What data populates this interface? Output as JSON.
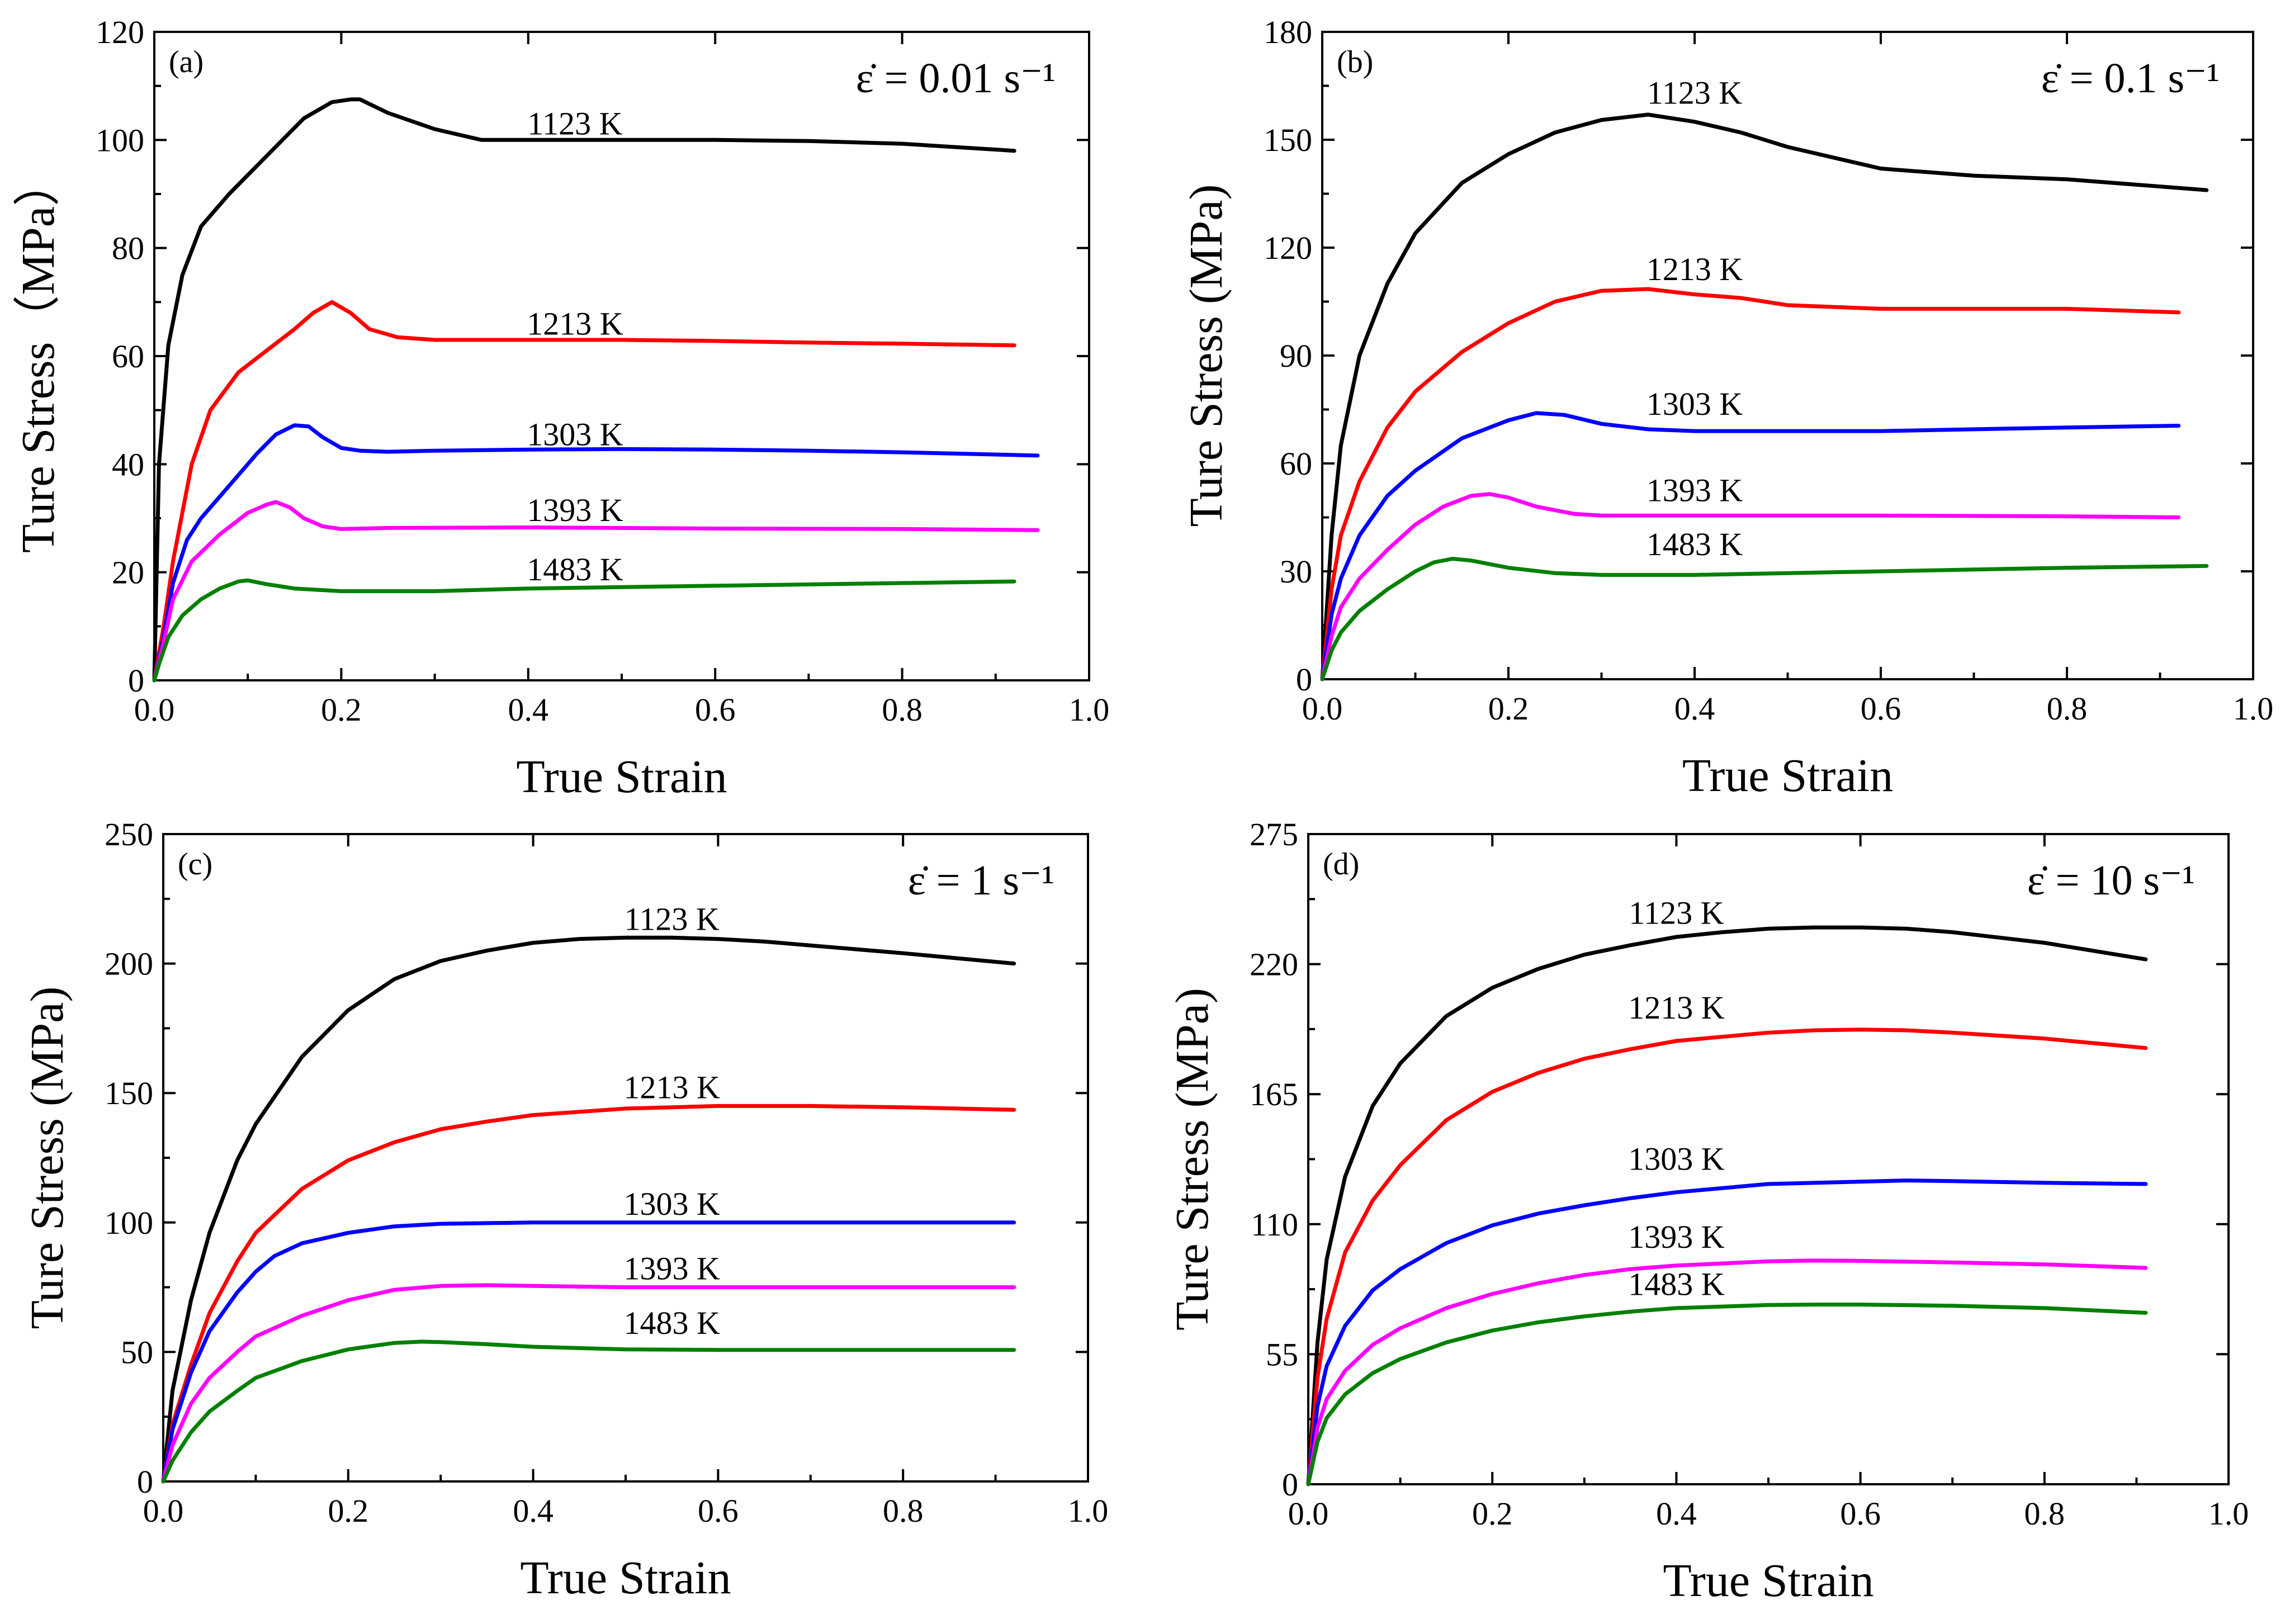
{
  "chart_data": [
    {
      "type": "line",
      "panel_label": "(a)",
      "rate_label": "ε̇ = 0.01 s⁻¹",
      "xlabel": "True Strain",
      "ylabel": "Ture Stress（MPa）",
      "xlim": [
        0,
        1.0
      ],
      "ylim": [
        0,
        120
      ],
      "xticks": [
        "0.0",
        "0.2",
        "0.4",
        "0.6",
        "0.8",
        "1.0"
      ],
      "yticks": [
        "0",
        "20",
        "40",
        "60",
        "80",
        "100",
        "120"
      ],
      "grid": false,
      "series": [
        {
          "name": "1123 K",
          "color": "#000000",
          "label_at": [
            0.45,
            101
          ],
          "x": [
            0,
            0.005,
            0.015,
            0.03,
            0.05,
            0.08,
            0.12,
            0.16,
            0.19,
            0.21,
            0.22,
            0.25,
            0.3,
            0.35,
            0.4,
            0.5,
            0.6,
            0.7,
            0.8,
            0.92
          ],
          "y": [
            0,
            40,
            62,
            75,
            84,
            90,
            97,
            104,
            107,
            107.5,
            107.5,
            105,
            102,
            100,
            100,
            100,
            100,
            99.8,
            99.3,
            98
          ]
        },
        {
          "name": "1213 K",
          "color": "#ff0000",
          "label_at": [
            0.45,
            64
          ],
          "x": [
            0,
            0.01,
            0.02,
            0.04,
            0.06,
            0.09,
            0.12,
            0.15,
            0.17,
            0.19,
            0.21,
            0.23,
            0.26,
            0.3,
            0.4,
            0.5,
            0.6,
            0.7,
            0.8,
            0.92
          ],
          "y": [
            0,
            10,
            22,
            40,
            50,
            57,
            61,
            65,
            68,
            70,
            68,
            65,
            63.5,
            63,
            63,
            63,
            62.8,
            62.5,
            62.3,
            62
          ]
        },
        {
          "name": "1303 K",
          "color": "#0000ff",
          "label_at": [
            0.45,
            43.5
          ],
          "x": [
            0,
            0.01,
            0.02,
            0.035,
            0.05,
            0.08,
            0.11,
            0.13,
            0.15,
            0.165,
            0.18,
            0.2,
            0.22,
            0.25,
            0.3,
            0.4,
            0.5,
            0.6,
            0.7,
            0.8,
            0.92,
            0.945
          ],
          "y": [
            0,
            8,
            18,
            26,
            30,
            36,
            42,
            45.5,
            47.2,
            47,
            45,
            43,
            42.5,
            42.3,
            42.5,
            42.7,
            42.8,
            42.7,
            42.5,
            42.2,
            41.7,
            41.6
          ]
        },
        {
          "name": "1393 K",
          "color": "#ff00ff",
          "label_at": [
            0.45,
            29.5
          ],
          "x": [
            0,
            0.01,
            0.02,
            0.04,
            0.07,
            0.1,
            0.12,
            0.13,
            0.145,
            0.16,
            0.18,
            0.2,
            0.25,
            0.4,
            0.6,
            0.8,
            0.945
          ],
          "y": [
            0,
            7,
            15,
            22,
            27,
            31,
            32.5,
            33,
            32,
            30,
            28.5,
            28,
            28.2,
            28.3,
            28.1,
            28,
            27.8
          ]
        },
        {
          "name": "1483 K",
          "color": "#008000",
          "label_at": [
            0.45,
            18.5
          ],
          "x": [
            0,
            0.005,
            0.015,
            0.03,
            0.05,
            0.07,
            0.09,
            0.1,
            0.12,
            0.15,
            0.2,
            0.3,
            0.4,
            0.6,
            0.8,
            0.92
          ],
          "y": [
            0,
            3,
            8,
            12,
            15,
            17,
            18.3,
            18.5,
            17.8,
            17,
            16.5,
            16.5,
            17,
            17.5,
            18,
            18.3
          ]
        }
      ]
    },
    {
      "type": "line",
      "panel_label": "(b)",
      "rate_label": "ε̇ = 0.1 s⁻¹",
      "xlabel": "True Strain",
      "ylabel": "Ture Stress (MPa)",
      "xlim": [
        0,
        1.0
      ],
      "ylim": [
        0,
        180
      ],
      "xticks": [
        "0.0",
        "0.2",
        "0.4",
        "0.6",
        "0.8",
        "1.0"
      ],
      "yticks": [
        "0",
        "30",
        "60",
        "90",
        "120",
        "150",
        "180"
      ],
      "grid": false,
      "series": [
        {
          "name": "1123 K",
          "color": "#000000",
          "label_at": [
            0.4,
            160
          ],
          "x": [
            0,
            0.01,
            0.02,
            0.04,
            0.07,
            0.1,
            0.15,
            0.2,
            0.25,
            0.3,
            0.35,
            0.4,
            0.45,
            0.5,
            0.6,
            0.7,
            0.8,
            0.9,
            0.95
          ],
          "y": [
            0,
            40,
            65,
            90,
            110,
            124,
            138,
            146,
            152,
            155.5,
            157,
            155,
            152,
            148,
            142,
            140,
            139,
            137,
            136
          ]
        },
        {
          "name": "1213 K",
          "color": "#ff0000",
          "label_at": [
            0.4,
            111
          ],
          "x": [
            0,
            0.01,
            0.02,
            0.04,
            0.07,
            0.1,
            0.15,
            0.2,
            0.25,
            0.3,
            0.35,
            0.4,
            0.45,
            0.5,
            0.6,
            0.7,
            0.8,
            0.92
          ],
          "y": [
            0,
            25,
            40,
            55,
            70,
            80,
            91,
            99,
            105,
            108,
            108.5,
            107,
            106,
            104,
            103,
            103,
            103,
            102
          ]
        },
        {
          "name": "1303 K",
          "color": "#0000ff",
          "label_at": [
            0.4,
            73.5
          ],
          "x": [
            0,
            0.01,
            0.02,
            0.04,
            0.07,
            0.1,
            0.15,
            0.2,
            0.23,
            0.26,
            0.3,
            0.35,
            0.4,
            0.5,
            0.6,
            0.7,
            0.8,
            0.92
          ],
          "y": [
            0,
            18,
            28,
            40,
            51,
            58,
            67,
            72,
            74,
            73.5,
            71,
            69.5,
            69,
            69,
            69,
            69.5,
            70,
            70.5
          ]
        },
        {
          "name": "1393 K",
          "color": "#ff00ff",
          "label_at": [
            0.4,
            49.5
          ],
          "x": [
            0,
            0.01,
            0.02,
            0.04,
            0.07,
            0.1,
            0.13,
            0.16,
            0.18,
            0.2,
            0.23,
            0.27,
            0.3,
            0.4,
            0.6,
            0.8,
            0.92
          ],
          "y": [
            0,
            12,
            20,
            28,
            36,
            43,
            48,
            51,
            51.5,
            50.5,
            48,
            46,
            45.5,
            45.5,
            45.5,
            45.3,
            45
          ]
        },
        {
          "name": "1483 K",
          "color": "#008000",
          "label_at": [
            0.4,
            34.5
          ],
          "x": [
            0,
            0.01,
            0.02,
            0.04,
            0.07,
            0.1,
            0.12,
            0.14,
            0.16,
            0.2,
            0.25,
            0.3,
            0.4,
            0.5,
            0.6,
            0.8,
            0.95
          ],
          "y": [
            0,
            8,
            13,
            19,
            25,
            30,
            32.5,
            33.5,
            33,
            31,
            29.5,
            29,
            29,
            29.5,
            30,
            31,
            31.5
          ]
        }
      ]
    },
    {
      "type": "line",
      "panel_label": "(c)",
      "rate_label": "ε̇ = 1 s⁻¹",
      "xlabel": "True Strain",
      "ylabel": "Ture Stress (MPa)",
      "xlim": [
        0,
        1.0
      ],
      "ylim": [
        0,
        250
      ],
      "xticks": [
        "0.0",
        "0.2",
        "0.4",
        "0.6",
        "0.8",
        "1.0"
      ],
      "yticks": [
        "0",
        "50",
        "100",
        "150",
        "200",
        "250"
      ],
      "grid": false,
      "series": [
        {
          "name": "1123 K",
          "color": "#000000",
          "label_at": [
            0.55,
            213
          ],
          "x": [
            0,
            0.01,
            0.03,
            0.05,
            0.08,
            0.1,
            0.15,
            0.2,
            0.25,
            0.3,
            0.35,
            0.4,
            0.45,
            0.5,
            0.55,
            0.6,
            0.65,
            0.7,
            0.8,
            0.92
          ],
          "y": [
            0,
            35,
            70,
            96,
            124,
            138,
            164,
            182,
            194,
            201,
            205,
            208,
            209.5,
            210,
            210,
            209.5,
            208.5,
            207,
            204,
            200
          ]
        },
        {
          "name": "1213 K",
          "color": "#ff0000",
          "label_at": [
            0.55,
            148
          ],
          "x": [
            0,
            0.01,
            0.03,
            0.05,
            0.08,
            0.1,
            0.15,
            0.2,
            0.25,
            0.3,
            0.35,
            0.4,
            0.5,
            0.6,
            0.7,
            0.8,
            0.92
          ],
          "y": [
            0,
            22,
            45,
            65,
            85,
            96,
            113,
            124,
            131,
            136,
            139,
            141.5,
            144,
            145,
            145,
            144.5,
            143.5
          ]
        },
        {
          "name": "1303 K",
          "color": "#0000ff",
          "label_at": [
            0.55,
            103
          ],
          "x": [
            0,
            0.01,
            0.03,
            0.05,
            0.08,
            0.1,
            0.12,
            0.15,
            0.2,
            0.25,
            0.3,
            0.4,
            0.5,
            0.6,
            0.7,
            0.8,
            0.92
          ],
          "y": [
            0,
            20,
            42,
            58,
            73,
            81,
            87,
            92,
            96,
            98.5,
            99.5,
            100,
            100,
            100,
            100,
            100,
            100
          ]
        },
        {
          "name": "1393 K",
          "color": "#ff00ff",
          "label_at": [
            0.55,
            78
          ],
          "x": [
            0,
            0.01,
            0.03,
            0.05,
            0.08,
            0.1,
            0.15,
            0.2,
            0.25,
            0.3,
            0.35,
            0.4,
            0.5,
            0.6,
            0.7,
            0.8,
            0.92
          ],
          "y": [
            0,
            14,
            30,
            40,
            50,
            56,
            64,
            70,
            74,
            75.5,
            75.8,
            75.5,
            75,
            75,
            75,
            75,
            75
          ]
        },
        {
          "name": "1483 K",
          "color": "#008000",
          "label_at": [
            0.55,
            57
          ],
          "x": [
            0,
            0.01,
            0.03,
            0.05,
            0.08,
            0.1,
            0.15,
            0.2,
            0.25,
            0.28,
            0.3,
            0.35,
            0.4,
            0.5,
            0.6,
            0.7,
            0.8,
            0.92
          ],
          "y": [
            0,
            8,
            19,
            27,
            35,
            40,
            46.5,
            51,
            53.5,
            54,
            53.8,
            53,
            52,
            51,
            50.8,
            50.8,
            50.8,
            50.8
          ]
        }
      ]
    },
    {
      "type": "line",
      "panel_label": "(d)",
      "rate_label": "ε̇ = 10 s⁻¹",
      "xlabel": "True Strain",
      "ylabel": "Ture Stress (MPa)",
      "xlim": [
        0,
        1.0
      ],
      "ylim": [
        0,
        275
      ],
      "xticks": [
        "0.0",
        "0.2",
        "0.4",
        "0.6",
        "0.8",
        "1.0"
      ],
      "yticks": [
        "0",
        "55",
        "110",
        "165",
        "220",
        "275"
      ],
      "grid": false,
      "series": [
        {
          "name": "1123 K",
          "color": "#000000",
          "label_at": [
            0.4,
            237
          ],
          "x": [
            0,
            0.01,
            0.02,
            0.04,
            0.07,
            0.1,
            0.15,
            0.2,
            0.25,
            0.3,
            0.35,
            0.4,
            0.45,
            0.5,
            0.55,
            0.6,
            0.65,
            0.7,
            0.8,
            0.91
          ],
          "y": [
            0,
            60,
            95,
            130,
            160,
            178,
            198,
            210,
            218,
            224,
            228,
            231.5,
            233.5,
            235,
            235.5,
            235.5,
            235,
            233.5,
            229,
            222
          ]
        },
        {
          "name": "1213 K",
          "color": "#ff0000",
          "label_at": [
            0.4,
            197
          ],
          "x": [
            0,
            0.01,
            0.02,
            0.04,
            0.07,
            0.1,
            0.15,
            0.2,
            0.25,
            0.3,
            0.35,
            0.4,
            0.5,
            0.55,
            0.6,
            0.65,
            0.7,
            0.8,
            0.91
          ],
          "y": [
            0,
            45,
            70,
            98,
            120,
            135,
            154,
            166,
            174,
            180,
            184,
            187.5,
            191,
            192,
            192.3,
            192,
            191,
            188.5,
            184.5
          ]
        },
        {
          "name": "1303 K",
          "color": "#0000ff",
          "label_at": [
            0.4,
            133
          ],
          "x": [
            0,
            0.01,
            0.02,
            0.04,
            0.07,
            0.1,
            0.15,
            0.2,
            0.25,
            0.3,
            0.35,
            0.4,
            0.5,
            0.6,
            0.65,
            0.7,
            0.8,
            0.91
          ],
          "y": [
            0,
            33,
            50,
            67,
            82,
            91,
            102,
            109.5,
            114.5,
            118,
            121,
            123.5,
            127,
            128,
            128.5,
            128.2,
            127.5,
            127
          ]
        },
        {
          "name": "1393 K",
          "color": "#ff00ff",
          "label_at": [
            0.4,
            100
          ],
          "x": [
            0,
            0.01,
            0.02,
            0.04,
            0.07,
            0.1,
            0.15,
            0.2,
            0.25,
            0.3,
            0.35,
            0.4,
            0.5,
            0.55,
            0.6,
            0.7,
            0.8,
            0.91
          ],
          "y": [
            0,
            24,
            36,
            48,
            59,
            66,
            74.5,
            80.5,
            85,
            88.5,
            91,
            92.5,
            94.3,
            94.6,
            94.5,
            93.8,
            93,
            91.5
          ]
        },
        {
          "name": "1483 K",
          "color": "#008000",
          "label_at": [
            0.4,
            80
          ],
          "x": [
            0,
            0.01,
            0.02,
            0.04,
            0.07,
            0.1,
            0.15,
            0.2,
            0.25,
            0.3,
            0.35,
            0.4,
            0.5,
            0.55,
            0.6,
            0.7,
            0.8,
            0.91
          ],
          "y": [
            0,
            18,
            28,
            38,
            47,
            53,
            60,
            65,
            68.5,
            71,
            73,
            74.5,
            75.8,
            76,
            76,
            75.5,
            74.5,
            72.5
          ]
        }
      ]
    }
  ]
}
